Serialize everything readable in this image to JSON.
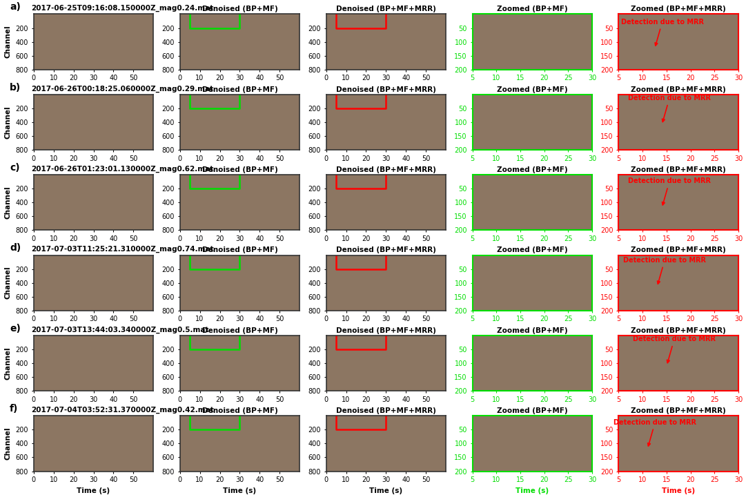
{
  "chart_data": {
    "type": "heatmap",
    "color": "#8c7662",
    "ylabel": "Channel",
    "xlabel": "Time (s)",
    "columns": [
      {
        "title": null,
        "xlim": [
          0,
          60
        ],
        "xticks": [
          0,
          10,
          20,
          30,
          40,
          50
        ],
        "ylim": [
          800,
          0
        ],
        "yticks": [
          200,
          400,
          600,
          800
        ],
        "frame_color": "#333333",
        "zoom_box": null
      },
      {
        "title": "Denoised (BP+MF)",
        "xlim": [
          0,
          60
        ],
        "xticks": [
          0,
          10,
          20,
          30,
          40,
          50
        ],
        "ylim": [
          800,
          0
        ],
        "yticks": [
          200,
          400,
          600,
          800
        ],
        "frame_color": "#333333",
        "zoom_box": "#00dd00"
      },
      {
        "title": "Denoised (BP+MF+MRR)",
        "xlim": [
          0,
          60
        ],
        "xticks": [
          0,
          10,
          20,
          30,
          40,
          50
        ],
        "ylim": [
          800,
          0
        ],
        "yticks": [
          200,
          400,
          600,
          800
        ],
        "frame_color": "#333333",
        "zoom_box": "#ff0000"
      },
      {
        "title": "Zoomed (BP+MF)",
        "xlim": [
          5,
          30
        ],
        "xticks": [
          5,
          10,
          15,
          20,
          25,
          30
        ],
        "ylim": [
          200,
          0
        ],
        "yticks": [
          50,
          100,
          150,
          200
        ],
        "frame_color": "#00dd00",
        "zoom_box": null
      },
      {
        "title": "Zoomed (BP+MF+MRR)",
        "xlim": [
          5,
          30
        ],
        "xticks": [
          5,
          10,
          15,
          20,
          25,
          30
        ],
        "ylim": [
          200,
          0
        ],
        "yticks": [
          50,
          100,
          150,
          200
        ],
        "frame_color": "#ff0000",
        "zoom_box": null
      }
    ],
    "rows": [
      {
        "letter": "a)",
        "file": "2017-06-25T09:16:08.150000Z_mag0.24.mat",
        "annotation": {
          "text": "Detection due to MRR",
          "x": 12.5,
          "y": 125
        }
      },
      {
        "letter": "b)",
        "file": "2017-06-26T00:18:25.060000Z_mag0.29.mat",
        "annotation": {
          "text": "Detection due to MRR",
          "x": 14,
          "y": 110
        }
      },
      {
        "letter": "c)",
        "file": "2017-06-26T01:23:01.130000Z_mag0.62.mat",
        "annotation": {
          "text": "Detection due to MRR",
          "x": 14,
          "y": 120
        }
      },
      {
        "letter": "d)",
        "file": "2017-07-03T11:25:21.310000Z_mag0.74.mat",
        "annotation": {
          "text": "Detection due to MRR",
          "x": 13,
          "y": 115
        }
      },
      {
        "letter": "e)",
        "file": "2017-07-03T13:44:03.340000Z_mag0.5.mat",
        "annotation": {
          "text": "Detection due to MRR",
          "x": 15,
          "y": 110
        }
      },
      {
        "letter": "f)",
        "file": "2017-07-04T03:52:31.370000Z_mag0.42.mat",
        "annotation": {
          "text": "Detection due to MRR",
          "x": 11,
          "y": 120
        }
      }
    ]
  }
}
